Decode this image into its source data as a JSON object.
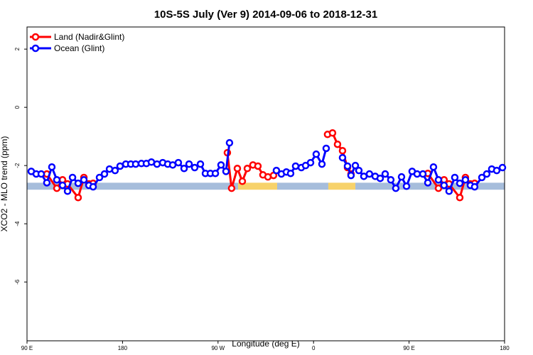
{
  "chart_data": {
    "type": "line",
    "title": "10S-5S July (Ver 9)   2014-09-06 to 2018-12-31",
    "x_label": "Longitude (deg E)",
    "y_label": "XCO2 - MLO trend (ppm)",
    "xlim": [
      90,
      540
    ],
    "ylim": [
      -8.02,
      2.76
    ],
    "xticks": [
      {
        "value": 90,
        "label": "90 E"
      },
      180,
      {
        "value": 270,
        "label": "90 W"
      },
      {
        "value": 360,
        "label": "0"
      },
      {
        "value": 450,
        "label": "90 E"
      },
      {
        "value": 540,
        "label": "180"
      }
    ],
    "yticks": [
      2,
      0,
      -2,
      -4,
      -6
    ],
    "grid": false,
    "legend": "top-left",
    "strip": {
      "y": [
        -2.83,
        -2.59
      ],
      "segments": [
        {
          "x": [
            90,
            288.9
          ],
          "color": "#a6bddb"
        },
        {
          "x": [
            288.9,
            325.7
          ],
          "color": "#f7d26a"
        },
        {
          "x": [
            325.7,
            373.9
          ],
          "color": "#a6bddb"
        },
        {
          "x": [
            373.9,
            399.4
          ],
          "color": "#f7d26a"
        },
        {
          "x": [
            399.4,
            540
          ],
          "color": "#a6bddb"
        }
      ]
    },
    "series": [
      {
        "name": "Land (Nadir&Glint)",
        "color": "#ff0000",
        "x": [
          108.7,
          118.1,
          123.5,
          128.2,
          138.2,
          143.6,
          148.3,
          152.3,
          null,
          278.8,
          282.8,
          288.2,
          292.9,
          297.6,
          302.9,
          307.6,
          312.3,
          317.0,
          322.3,
          null,
          373.2,
          377.9,
          382.6,
          387.3,
          392.0,
          395.3,
          null,
          467.7,
          477.7,
          483.0,
          487.7,
          497.8,
          503.1,
          507.8,
          511.8
        ],
        "values": [
          -2.29,
          -2.78,
          -2.49,
          -2.63,
          -3.1,
          -2.41,
          -2.63,
          -2.61,
          null,
          -1.56,
          -2.78,
          -2.1,
          -2.54,
          -2.1,
          -1.98,
          -2.02,
          -2.32,
          -2.39,
          -2.34,
          null,
          -0.93,
          -0.88,
          -1.27,
          -1.49,
          -2.07,
          -2.29,
          null,
          -2.27,
          -2.78,
          -2.49,
          -2.63,
          -3.1,
          -2.41,
          -2.63,
          -2.61
        ]
      },
      {
        "name": "Ocean (Glint)",
        "color": "#0000ff",
        "x": [
          94.0,
          98.7,
          103.4,
          108.7,
          113.4,
          118.1,
          123.5,
          128.2,
          132.9,
          138.2,
          143.6,
          148.3,
          152.3,
          158.3,
          163.0,
          167.7,
          173.0,
          177.7,
          183.1,
          187.8,
          192.4,
          197.8,
          202.5,
          207.2,
          212.5,
          217.9,
          222.6,
          227.3,
          232.6,
          238.0,
          242.7,
          248.0,
          253.4,
          258.1,
          262.8,
          267.5,
          272.8,
          277.5,
          280.8,
          null,
          325.0,
          329.7,
          334.4,
          338.4,
          343.1,
          348.5,
          352.5,
          357.2,
          362.5,
          367.9,
          371.9,
          null,
          387.3,
          392.0,
          395.3,
          399.4,
          402.7,
          407.4,
          412.7,
          418.1,
          422.8,
          427.5,
          432.8,
          437.5,
          442.9,
          447.6,
          452.9,
          457.6,
          463.0,
          467.7,
          473.0,
          477.7,
          483.0,
          487.7,
          493.1,
          497.8,
          503.1,
          507.8,
          511.8,
          518.6,
          523.2,
          527.9,
          532.6,
          538.0
        ],
        "values": [
          -2.2,
          -2.29,
          -2.29,
          -2.59,
          -2.05,
          -2.49,
          -2.68,
          -2.88,
          -2.41,
          -2.61,
          -2.49,
          -2.68,
          -2.73,
          -2.41,
          -2.29,
          -2.12,
          -2.17,
          -2.02,
          -1.95,
          -1.95,
          -1.95,
          -1.93,
          -1.93,
          -1.88,
          -1.95,
          -1.9,
          -1.95,
          -1.98,
          -1.9,
          -2.1,
          -1.95,
          -2.07,
          -1.95,
          -2.27,
          -2.27,
          -2.27,
          -1.98,
          -2.2,
          -1.22,
          null,
          -2.17,
          -2.29,
          -2.22,
          -2.27,
          -2.02,
          -2.07,
          -2.0,
          -1.9,
          -1.61,
          -1.95,
          -1.41,
          null,
          -1.73,
          -2.02,
          -2.34,
          -2.0,
          -2.17,
          -2.37,
          -2.29,
          -2.37,
          -2.44,
          -2.29,
          -2.49,
          -2.78,
          -2.39,
          -2.71,
          -2.2,
          -2.29,
          -2.29,
          -2.59,
          -2.05,
          -2.49,
          -2.68,
          -2.88,
          -2.41,
          -2.61,
          -2.49,
          -2.68,
          -2.73,
          -2.41,
          -2.29,
          -2.12,
          -2.17,
          -2.07
        ]
      }
    ]
  }
}
